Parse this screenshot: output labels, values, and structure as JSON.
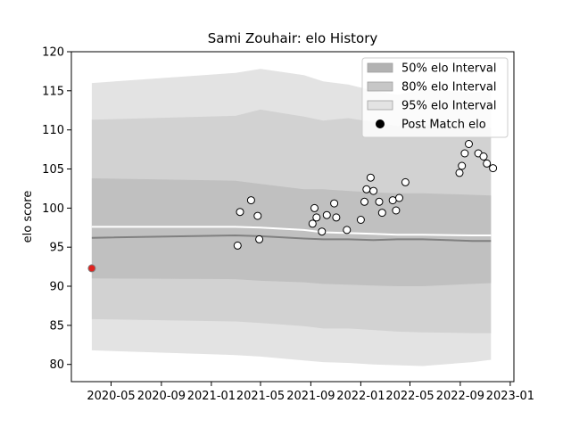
{
  "chart_data": {
    "type": "line",
    "title": "Sami Zouhair: elo History",
    "xlabel": "",
    "ylabel": "elo score",
    "x_axis_type": "date",
    "xlim": [
      "2020-01-25",
      "2023-01-10"
    ],
    "ylim": [
      77.8,
      120
    ],
    "x_ticks": [
      "2020-05",
      "2020-09",
      "2021-01",
      "2021-05",
      "2021-09",
      "2022-01",
      "2022-05",
      "2022-09",
      "2023-01"
    ],
    "y_ticks": [
      80,
      85,
      90,
      95,
      100,
      105,
      110,
      115,
      120
    ],
    "grid": false,
    "legend_position": "top-right",
    "legend": [
      {
        "label": "50% elo Interval",
        "kind": "patch",
        "color": "#b2b2b2"
      },
      {
        "label": "80% elo Interval",
        "kind": "patch",
        "color": "#c7c7c7"
      },
      {
        "label": "95% elo Interval",
        "kind": "patch",
        "color": "#e3e3e3"
      },
      {
        "label": "Post Match elo",
        "kind": "marker",
        "color": "#000000"
      }
    ],
    "band_x": [
      "2020-03-15",
      "2021-03-01",
      "2021-05-01",
      "2021-08-15",
      "2021-10-01",
      "2021-12-01",
      "2022-02-01",
      "2022-04-01",
      "2022-06-01",
      "2022-10-01",
      "2022-11-15"
    ],
    "bands": [
      {
        "name": "95% elo Interval",
        "color": "#e3e3e3",
        "upper": [
          116.0,
          117.3,
          117.8,
          117.0,
          116.2,
          115.8,
          115.0,
          114.5,
          115.2,
          114.8,
          115.0
        ],
        "lower": [
          81.8,
          81.2,
          81.0,
          80.5,
          80.3,
          80.2,
          80.0,
          79.9,
          79.8,
          80.3,
          80.6
        ]
      },
      {
        "name": "80% elo Interval",
        "color": "#d2d2d2",
        "upper": [
          111.3,
          111.8,
          112.6,
          111.7,
          111.2,
          111.5,
          111.0,
          110.5,
          110.7,
          110.5,
          110.3
        ],
        "lower": [
          85.8,
          85.5,
          85.3,
          84.9,
          84.6,
          84.6,
          84.4,
          84.2,
          84.1,
          84.0,
          84.0
        ]
      },
      {
        "name": "50% elo Interval",
        "color": "#c0c0c0",
        "upper": [
          103.8,
          103.5,
          103.1,
          102.4,
          102.4,
          102.2,
          102.0,
          101.9,
          101.9,
          101.7,
          101.6
        ],
        "lower": [
          91.0,
          90.9,
          90.7,
          90.5,
          90.3,
          90.2,
          90.1,
          90.0,
          90.0,
          90.3,
          90.4
        ]
      }
    ],
    "series": [
      {
        "kind": "line",
        "color": "#ffffff",
        "values": [
          97.6,
          97.6,
          97.5,
          97.2,
          96.9,
          96.8,
          96.7,
          96.6,
          96.6,
          96.5,
          96.5
        ]
      },
      {
        "kind": "line",
        "color": "#808080",
        "values": [
          96.2,
          96.5,
          96.4,
          96.1,
          96.0,
          96.0,
          95.9,
          96.0,
          96.0,
          95.8,
          95.8
        ]
      }
    ],
    "initial_point": {
      "x": "2020-03-15",
      "y": 92.3,
      "color": "#e0221e"
    },
    "matches": [
      {
        "x": "2021-03-06",
        "y": 95.2
      },
      {
        "x": "2021-03-12",
        "y": 99.5
      },
      {
        "x": "2021-04-08",
        "y": 101.0
      },
      {
        "x": "2021-04-24",
        "y": 99.0
      },
      {
        "x": "2021-04-28",
        "y": 96.0
      },
      {
        "x": "2021-09-05",
        "y": 98.0
      },
      {
        "x": "2021-09-10",
        "y": 100.0
      },
      {
        "x": "2021-09-15",
        "y": 98.8
      },
      {
        "x": "2021-09-28",
        "y": 97.0
      },
      {
        "x": "2021-10-10",
        "y": 99.1
      },
      {
        "x": "2021-10-28",
        "y": 100.6
      },
      {
        "x": "2021-11-02",
        "y": 98.8
      },
      {
        "x": "2021-11-28",
        "y": 97.2
      },
      {
        "x": "2022-01-01",
        "y": 98.5
      },
      {
        "x": "2022-01-10",
        "y": 100.8
      },
      {
        "x": "2022-01-15",
        "y": 102.4
      },
      {
        "x": "2022-01-25",
        "y": 103.9
      },
      {
        "x": "2022-02-01",
        "y": 102.2
      },
      {
        "x": "2022-02-15",
        "y": 100.8
      },
      {
        "x": "2022-02-22",
        "y": 99.4
      },
      {
        "x": "2022-03-20",
        "y": 101.0
      },
      {
        "x": "2022-03-28",
        "y": 99.7
      },
      {
        "x": "2022-04-05",
        "y": 101.3
      },
      {
        "x": "2022-04-20",
        "y": 103.3
      },
      {
        "x": "2022-08-30",
        "y": 104.5
      },
      {
        "x": "2022-09-05",
        "y": 105.4
      },
      {
        "x": "2022-09-12",
        "y": 107.0
      },
      {
        "x": "2022-09-22",
        "y": 108.2
      },
      {
        "x": "2022-10-15",
        "y": 107.0
      },
      {
        "x": "2022-10-28",
        "y": 106.6
      },
      {
        "x": "2022-11-05",
        "y": 105.7
      },
      {
        "x": "2022-11-20",
        "y": 105.1
      }
    ]
  }
}
